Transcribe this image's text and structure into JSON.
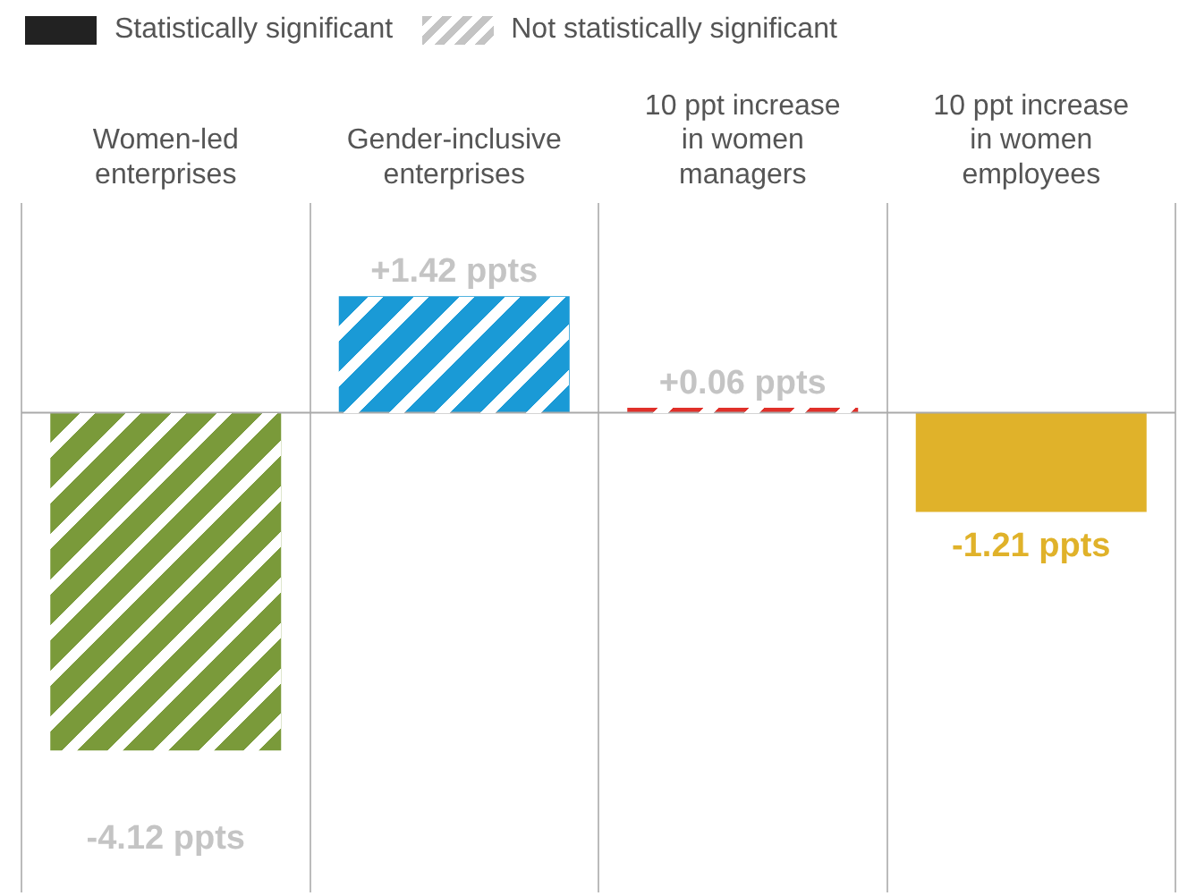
{
  "chart_data": {
    "type": "bar",
    "categories": [
      "Women-led enterprises",
      "Gender-inclusive enterprises",
      "10 ppt increase in women managers",
      "10 ppt increase in women employees"
    ],
    "series": [
      {
        "colors": [
          "#e0b22a",
          "#e0b22a",
          "#e0b22a",
          "#e0b22a"
        ],
        "values": [
          null,
          null,
          null,
          -1.21
        ],
        "value_labels": [
          null,
          null,
          null,
          "-1.21 ppts"
        ]
      },
      {
        "colors": [
          "#7a9a3a",
          "#1a9ad6",
          "#e0302a",
          "#7a9a3a"
        ],
        "values": [
          -4.12,
          1.42,
          0.06,
          null
        ],
        "value_labels": [
          "-4.12 ppts",
          "+1.42 ppts",
          "+0.06 ppts",
          null
        ]
      }
    ],
    "annotations": [
      "Statistically significant",
      "Not statistically significant"
    ],
    "grid": "x"
  }
}
